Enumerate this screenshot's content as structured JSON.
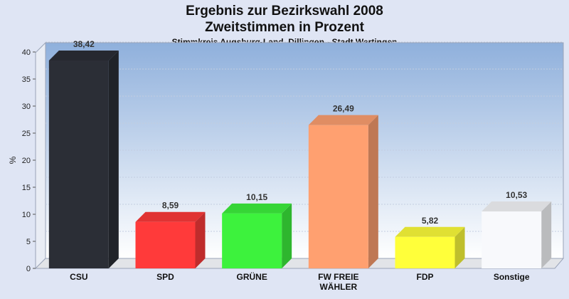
{
  "chart_data": {
    "type": "bar",
    "title": "Ergebnis zur Bezirkswahl 2008",
    "subtitle": "Zweitstimmen in Prozent",
    "subsubtitle": "Stimmkreis Augsburg-Land, Dillingen - Stadt Wertingen",
    "ylabel": "%",
    "xlabel": "",
    "ylim": [
      0,
      40
    ],
    "yticks": [
      0,
      5,
      10,
      15,
      20,
      25,
      30,
      35,
      40
    ],
    "grid": true,
    "categories": [
      "CSU",
      "SPD",
      "GRÜNE",
      "FW FREIE WÄHLER",
      "FDP",
      "Sonstige"
    ],
    "category_lines": [
      [
        "CSU"
      ],
      [
        "SPD"
      ],
      [
        "GRÜNE"
      ],
      [
        "FW FREIE",
        "WÄHLER"
      ],
      [
        "FDP"
      ],
      [
        "Sonstige"
      ]
    ],
    "values": [
      38.42,
      8.59,
      10.15,
      26.49,
      5.82,
      10.53
    ],
    "value_labels": [
      "38,42",
      "8,59",
      "10,15",
      "26,49",
      "5,82",
      "10,53"
    ],
    "colors": [
      "#2b2e36",
      "#ff3a3a",
      "#3df23d",
      "#ffa070",
      "#ffff3a",
      "#f8f9fc"
    ]
  }
}
